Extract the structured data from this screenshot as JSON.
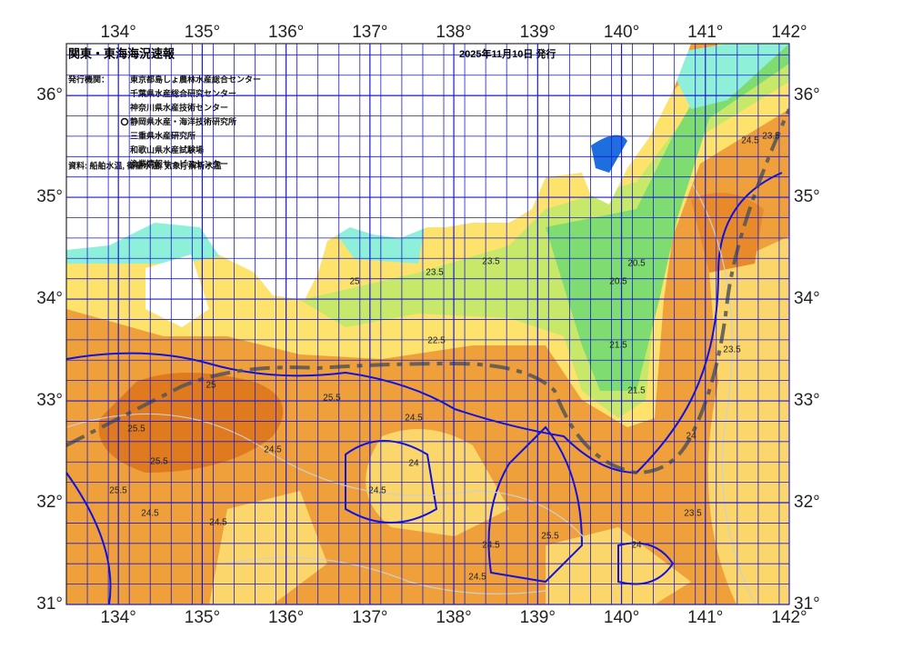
{
  "title": "関東・東海海況速報",
  "issued": "2025年11月10日 発行",
  "issuers_label": "発行機関：",
  "issuers": [
    "東京都島しょ農林水産総合センター",
    "千葉県水産総合研究センター",
    "神奈川県水産技術センター",
    "静岡県水産・海洋技術研究所",
    "三重県水産研究所",
    "和歌山県水産試験場",
    "漁業情報サービスセンター"
  ],
  "source": "資料: 船舶水温, 衛星水温, 気象庁解析水温",
  "map": {
    "type": "map",
    "xlim": [
      133.38,
      142
    ],
    "ylim": [
      31,
      36.51
    ],
    "xticks": [
      {
        "value": 134,
        "label": "134°"
      },
      {
        "value": 135,
        "label": "135°"
      },
      {
        "value": 136,
        "label": "136°"
      },
      {
        "value": 137,
        "label": "137°"
      },
      {
        "value": 138,
        "label": "138°"
      },
      {
        "value": 139,
        "label": "139°"
      },
      {
        "value": 140,
        "label": "140°"
      },
      {
        "value": 141,
        "label": "141°"
      },
      {
        "value": 142,
        "label": "142°"
      }
    ],
    "yticks": [
      {
        "value": 31,
        "label": "31°"
      },
      {
        "value": 32,
        "label": "32°"
      },
      {
        "value": 33,
        "label": "33°"
      },
      {
        "value": 34,
        "label": "34°"
      },
      {
        "value": 35,
        "label": "35°"
      },
      {
        "value": 36,
        "label": "36°"
      }
    ],
    "contour_labels": [
      25,
      25.5,
      25.5,
      25.5,
      24.5,
      24.5,
      24.5,
      24.5,
      24,
      24,
      23.5,
      23.5,
      23.5,
      22.5,
      21.5,
      21.5,
      20.5,
      20.5,
      24.5,
      25.5,
      24.5,
      25.5,
      23.5,
      24.5,
      24.5,
      25,
      23.5,
      24
    ]
  }
}
